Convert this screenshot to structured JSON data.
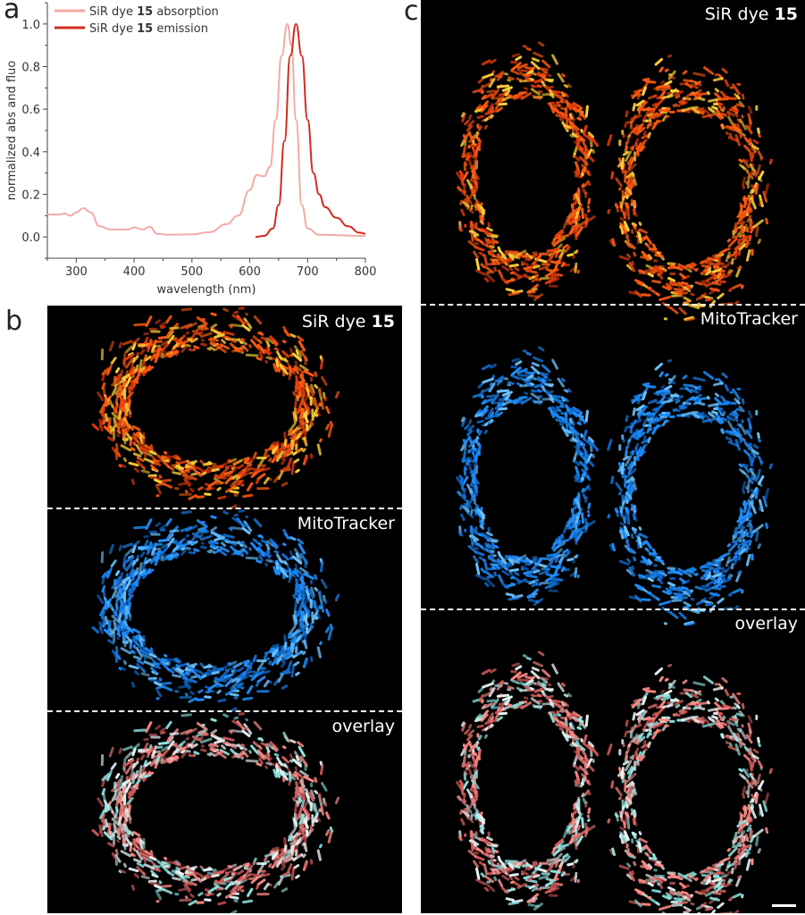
{
  "panels": {
    "a": {
      "letter": "a"
    },
    "b": {
      "letter": "b",
      "labels": {
        "sir_prefix": "SiR dye ",
        "sir_number": "15",
        "mitotracker": "MitoTracker",
        "overlay": "overlay"
      }
    },
    "c": {
      "letter": "c",
      "labels": {
        "sir_prefix": "SiR dye ",
        "sir_number": "15",
        "mitotracker": "MitoTracker",
        "overlay": "overlay"
      }
    }
  },
  "colors": {
    "absorption": "#f4aaa4",
    "emission": "#d42a1e",
    "sir": "#ff5a12",
    "sir_hot": "#ffd23a",
    "mito": "#1e8fff",
    "overlay_a": "#8fe8e4",
    "overlay_b": "#ff8a86"
  },
  "chart_data": {
    "type": "line",
    "xlabel": "wavelength (nm)",
    "ylabel": "normalized abs and fluo",
    "xlim": [
      250,
      800
    ],
    "ylim": [
      -0.1,
      1.1
    ],
    "xticks": [
      300,
      400,
      500,
      600,
      700,
      800
    ],
    "yticks": [
      0.0,
      0.2,
      0.4,
      0.6,
      0.8,
      1.0
    ],
    "yticklabels": [
      "0.0",
      "0.2",
      "0.4",
      "0.6",
      "0.8",
      "1.0"
    ],
    "legend_placement": "top-left",
    "series": [
      {
        "name_prefix": "SiR dye ",
        "name_number": "15",
        "name_suffix": " absorption",
        "x": [
          250,
          270,
          280,
          290,
          300,
          312,
          325,
          340,
          360,
          390,
          400,
          415,
          427,
          440,
          460,
          500,
          530,
          560,
          580,
          600,
          612,
          625,
          635,
          645,
          655,
          665,
          672,
          680,
          690,
          700,
          720,
          800
        ],
        "y": [
          0.105,
          0.105,
          0.11,
          0.1,
          0.115,
          0.135,
          0.115,
          0.05,
          0.035,
          0.035,
          0.045,
          0.035,
          0.048,
          0.015,
          0.01,
          0.012,
          0.022,
          0.06,
          0.1,
          0.22,
          0.29,
          0.285,
          0.33,
          0.55,
          0.85,
          1.0,
          0.9,
          0.55,
          0.15,
          0.04,
          0.01,
          0.005
        ]
      },
      {
        "name_prefix": "SiR dye ",
        "name_number": "15",
        "name_suffix": " emission",
        "x": [
          610,
          625,
          640,
          650,
          660,
          670,
          680,
          690,
          700,
          710,
          720,
          730,
          750,
          770,
          790,
          800
        ],
        "y": [
          0,
          0.005,
          0.04,
          0.15,
          0.45,
          0.85,
          1.0,
          0.85,
          0.55,
          0.3,
          0.2,
          0.14,
          0.09,
          0.05,
          0.02,
          0.015
        ]
      }
    ]
  }
}
